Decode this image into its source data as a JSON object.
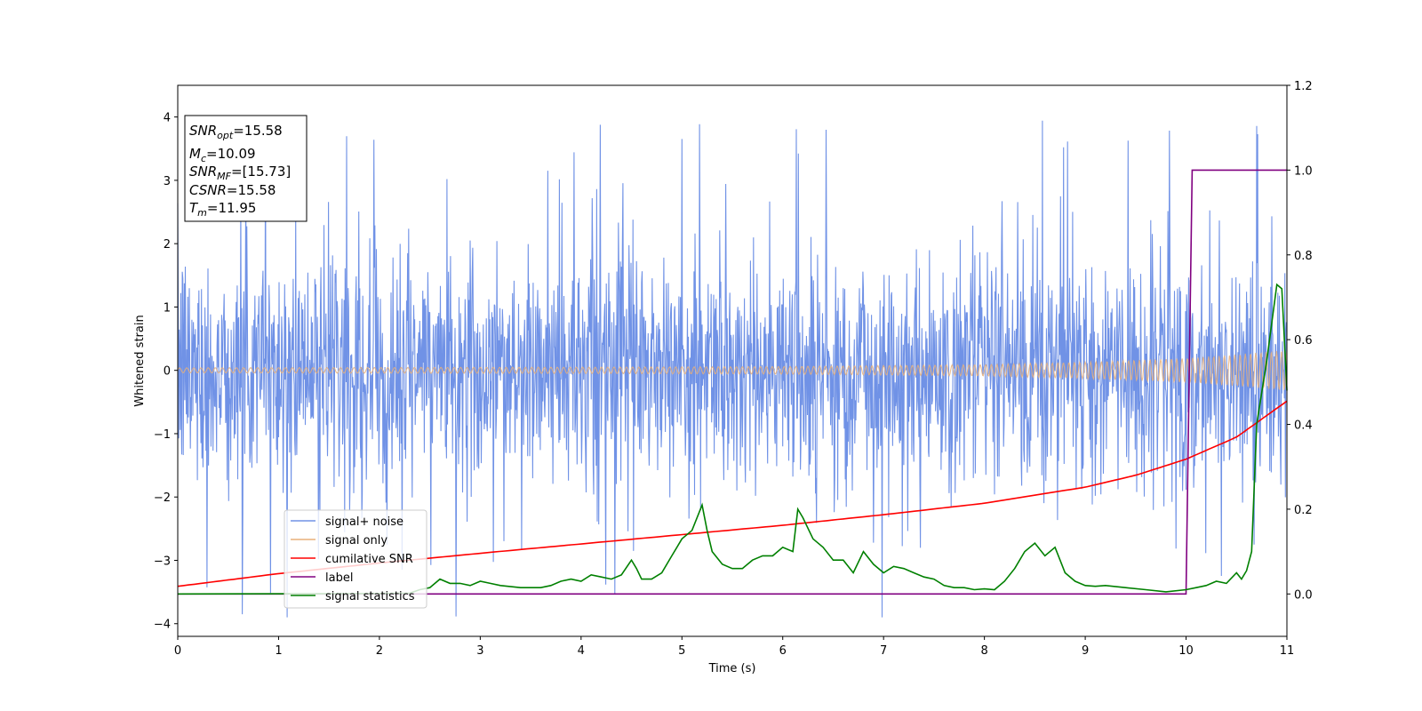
{
  "chart_data": {
    "type": "line",
    "xlabel": "Time (s)",
    "ylabel": "Whitened strain",
    "xlim": [
      0,
      11
    ],
    "ylim": [
      -4.2,
      4.5
    ],
    "y2lim": [
      -0.1,
      1.2
    ],
    "xticks": [
      0,
      1,
      2,
      3,
      4,
      5,
      6,
      7,
      8,
      9,
      10,
      11
    ],
    "yticks": [
      -4,
      -3,
      -2,
      -1,
      0,
      1,
      2,
      3,
      4
    ],
    "y2ticks": [
      "0.0",
      "0.2",
      "0.4",
      "0.6",
      "0.8",
      "1.0",
      "1.2"
    ],
    "grid": false,
    "legend_position": "lower-left",
    "info_box": {
      "snr_opt": "=15.58",
      "mc": "=10.09",
      "snr_mf": "=[15.73]",
      "csnr": "=15.58",
      "tm": "=11.95"
    },
    "series": [
      {
        "name": "signal+ noise",
        "color": "#7092e6",
        "axis": "left",
        "description_values": "dense noise roughly within ±2.5 with spikes near ±4"
      },
      {
        "name": "signal only",
        "color": "#e8b07a",
        "axis": "left",
        "envelope": {
          "x": [
            0,
            2,
            4,
            6,
            8,
            9,
            10,
            10.5,
            11
          ],
          "amp": [
            0.04,
            0.045,
            0.05,
            0.06,
            0.09,
            0.13,
            0.19,
            0.25,
            0.32
          ]
        }
      },
      {
        "name": "cumilative SNR",
        "color": "#ff0000",
        "axis": "right",
        "x": [
          0,
          1,
          2,
          3,
          4,
          5,
          6,
          7,
          8,
          9,
          9.5,
          10,
          10.5,
          11
        ],
        "y": [
          0.018,
          0.048,
          0.073,
          0.096,
          0.118,
          0.14,
          0.162,
          0.187,
          0.214,
          0.252,
          0.28,
          0.318,
          0.37,
          0.455
        ]
      },
      {
        "name": "label",
        "color": "#800080",
        "axis": "right",
        "x": [
          0,
          10.0,
          10.06,
          11
        ],
        "y": [
          0,
          0,
          1,
          1
        ]
      },
      {
        "name": "signal statistics",
        "color": "#008000",
        "axis": "right",
        "x": [
          0,
          2.0,
          2.3,
          2.4,
          2.5,
          2.6,
          2.7,
          2.8,
          2.9,
          3.0,
          3.1,
          3.2,
          3.4,
          3.6,
          3.7,
          3.8,
          3.9,
          4.0,
          4.1,
          4.2,
          4.3,
          4.4,
          4.5,
          4.55,
          4.6,
          4.7,
          4.8,
          4.9,
          5.0,
          5.1,
          5.2,
          5.25,
          5.3,
          5.4,
          5.5,
          5.6,
          5.7,
          5.8,
          5.9,
          6.0,
          6.1,
          6.15,
          6.2,
          6.3,
          6.4,
          6.5,
          6.6,
          6.7,
          6.8,
          6.9,
          7.0,
          7.1,
          7.2,
          7.3,
          7.4,
          7.5,
          7.6,
          7.7,
          7.8,
          7.9,
          8.0,
          8.1,
          8.2,
          8.3,
          8.4,
          8.5,
          8.6,
          8.7,
          8.8,
          8.9,
          9.0,
          9.1,
          9.2,
          9.4,
          9.6,
          9.8,
          10.0,
          10.1,
          10.2,
          10.3,
          10.4,
          10.5,
          10.55,
          10.6,
          10.65,
          10.7,
          10.8,
          10.9,
          10.95,
          11.0
        ],
        "y": [
          0.0,
          0.001,
          0.002,
          0.01,
          0.015,
          0.035,
          0.025,
          0.025,
          0.02,
          0.03,
          0.025,
          0.02,
          0.015,
          0.015,
          0.02,
          0.03,
          0.035,
          0.03,
          0.045,
          0.04,
          0.035,
          0.045,
          0.08,
          0.06,
          0.035,
          0.035,
          0.05,
          0.09,
          0.13,
          0.15,
          0.21,
          0.15,
          0.1,
          0.07,
          0.06,
          0.06,
          0.08,
          0.09,
          0.09,
          0.11,
          0.1,
          0.2,
          0.18,
          0.13,
          0.11,
          0.08,
          0.08,
          0.05,
          0.1,
          0.07,
          0.05,
          0.065,
          0.06,
          0.05,
          0.04,
          0.035,
          0.02,
          0.015,
          0.015,
          0.01,
          0.012,
          0.01,
          0.03,
          0.06,
          0.1,
          0.12,
          0.09,
          0.11,
          0.05,
          0.03,
          0.02,
          0.018,
          0.02,
          0.015,
          0.01,
          0.005,
          0.01,
          0.015,
          0.02,
          0.03,
          0.025,
          0.05,
          0.035,
          0.055,
          0.1,
          0.4,
          0.55,
          0.73,
          0.72,
          0.48
        ]
      }
    ]
  }
}
